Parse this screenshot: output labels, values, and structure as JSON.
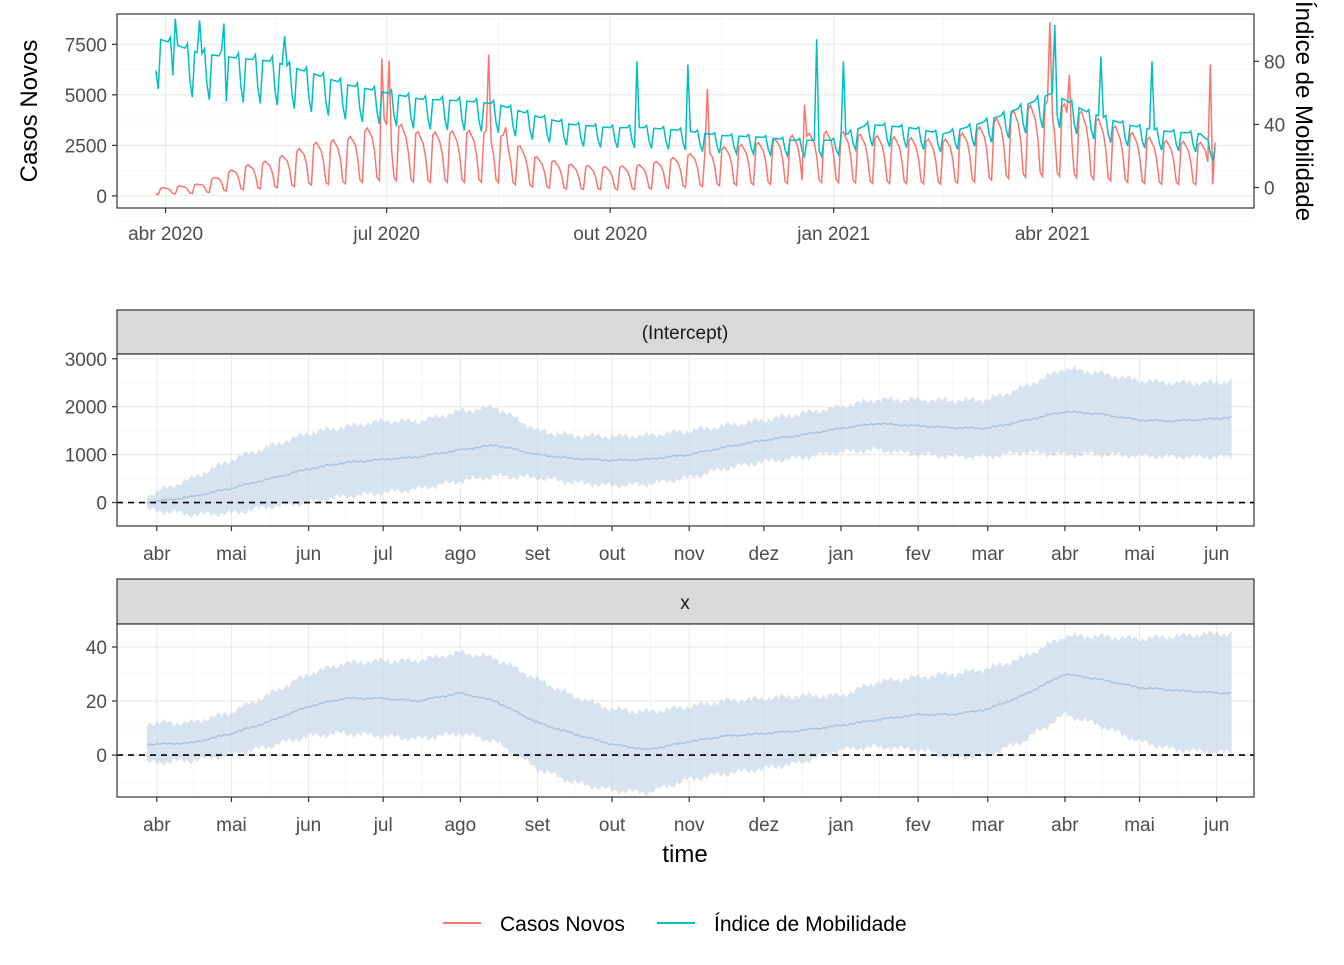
{
  "colors": {
    "casos": "#F8766D",
    "mobilidade": "#00BFC4",
    "ribbon": "#c6d9ea",
    "line": "#a9c4dc",
    "grid_major": "#ebebeb",
    "grid_minor": "#f4f4f4",
    "strip_fill": "#d9d9d9"
  },
  "legend": {
    "position": "bottom",
    "items": [
      "Casos Novos",
      "Índice de Mobilidade"
    ]
  },
  "chart_data": [
    {
      "type": "line",
      "x_axis": {
        "type": "date",
        "range": [
          "2020-03-12",
          "2021-06-23"
        ],
        "ticks": [
          "2020-04-01",
          "2020-07-01",
          "2020-10-01",
          "2021-01-01",
          "2021-04-01"
        ],
        "tick_labels": [
          "abr 2020",
          "jul 2020",
          "out 2020",
          "jan 2021",
          "abr 2021"
        ]
      },
      "y_left": {
        "label": "Casos Novos",
        "range": [
          -600,
          9000
        ],
        "ticks": [
          0,
          2500,
          5000,
          7500
        ]
      },
      "y_right": {
        "label": "Índice de Mobilidade",
        "range": [
          -13,
          110
        ],
        "ticks": [
          0,
          40,
          80
        ]
      },
      "grid": true,
      "series": [
        {
          "name": "Casos Novos",
          "axis": "left",
          "color": "#F8766D",
          "weekly_pattern": [
            1.15,
            1.2,
            1.1,
            1.0,
            0.75,
            0.3,
            0.25
          ],
          "points": [
            [
              "2020-03-28",
              300
            ],
            [
              "2020-04-15",
              500
            ],
            [
              "2020-05-01",
              1200
            ],
            [
              "2020-05-15",
              1500
            ],
            [
              "2020-06-01",
              2200
            ],
            [
              "2020-06-15",
              2400
            ],
            [
              "2020-07-01",
              3200
            ],
            [
              "2020-07-15",
              2600
            ],
            [
              "2020-08-01",
              2700
            ],
            [
              "2020-08-15",
              2700
            ],
            [
              "2020-09-01",
              1600
            ],
            [
              "2020-09-15",
              1300
            ],
            [
              "2020-10-01",
              1200
            ],
            [
              "2020-10-15",
              1300
            ],
            [
              "2020-11-01",
              1700
            ],
            [
              "2020-11-15",
              2000
            ],
            [
              "2020-12-01",
              2200
            ],
            [
              "2020-12-15",
              2500
            ],
            [
              "2021-01-01",
              2700
            ],
            [
              "2021-01-15",
              2500
            ],
            [
              "2021-02-01",
              2400
            ],
            [
              "2021-02-15",
              2300
            ],
            [
              "2021-03-01",
              2800
            ],
            [
              "2021-03-15",
              3500
            ],
            [
              "2021-04-01",
              4000
            ],
            [
              "2021-04-15",
              3400
            ],
            [
              "2021-05-01",
              2700
            ],
            [
              "2021-05-15",
              2300
            ],
            [
              "2021-06-01",
              2200
            ],
            [
              "2021-06-07",
              2300
            ]
          ],
          "spikes": [
            [
              "2020-06-29",
              6800
            ],
            [
              "2020-07-02",
              6700
            ],
            [
              "2020-08-12",
              7000
            ],
            [
              "2020-08-19",
              3400
            ],
            [
              "2020-11-10",
              5300
            ],
            [
              "2020-12-20",
              4500
            ],
            [
              "2021-03-31",
              8600
            ],
            [
              "2021-04-08",
              6000
            ],
            [
              "2021-06-05",
              6500
            ]
          ]
        },
        {
          "name": "Índice de Mobilidade",
          "axis": "right",
          "color": "#00BFC4",
          "weekly_pattern": [
            1.0,
            1.0,
            1.0,
            1.0,
            1.04,
            0.78,
            0.66
          ],
          "points": [
            [
              "2020-03-28",
              95
            ],
            [
              "2020-04-15",
              85
            ],
            [
              "2020-05-01",
              82
            ],
            [
              "2020-05-15",
              80
            ],
            [
              "2020-06-01",
              72
            ],
            [
              "2020-06-15",
              65
            ],
            [
              "2020-07-01",
              60
            ],
            [
              "2020-07-15",
              56
            ],
            [
              "2020-08-01",
              55
            ],
            [
              "2020-08-15",
              53
            ],
            [
              "2020-09-01",
              45
            ],
            [
              "2020-09-15",
              40
            ],
            [
              "2020-10-01",
              38
            ],
            [
              "2020-10-15",
              38
            ],
            [
              "2020-11-01",
              36
            ],
            [
              "2020-11-15",
              33
            ],
            [
              "2020-12-01",
              32
            ],
            [
              "2020-12-15",
              30
            ],
            [
              "2021-01-01",
              30
            ],
            [
              "2021-01-15",
              40
            ],
            [
              "2021-02-01",
              38
            ],
            [
              "2021-02-15",
              34
            ],
            [
              "2021-03-01",
              40
            ],
            [
              "2021-03-15",
              48
            ],
            [
              "2021-04-01",
              60
            ],
            [
              "2021-04-15",
              48
            ],
            [
              "2021-05-01",
              40
            ],
            [
              "2021-05-15",
              36
            ],
            [
              "2021-06-01",
              34
            ],
            [
              "2021-06-07",
              25
            ]
          ],
          "spikes": [
            [
              "2020-04-05",
              107
            ],
            [
              "2020-04-15",
              106
            ],
            [
              "2020-04-25",
              104
            ],
            [
              "2020-05-20",
              96
            ],
            [
              "2020-10-12",
              80
            ],
            [
              "2020-11-02",
              78
            ],
            [
              "2020-12-25",
              94
            ],
            [
              "2021-01-05",
              80
            ],
            [
              "2021-04-02",
              103
            ],
            [
              "2021-04-21",
              83
            ],
            [
              "2021-05-12",
              80
            ]
          ]
        }
      ]
    },
    {
      "type": "area",
      "facet": "(Intercept)",
      "x_axis": {
        "type": "date",
        "range": [
          "2020-03-16",
          "2021-06-16"
        ],
        "ticks": [
          "2020-04-01",
          "2020-05-01",
          "2020-06-01",
          "2020-07-01",
          "2020-08-01",
          "2020-09-01",
          "2020-10-01",
          "2020-11-01",
          "2020-12-01",
          "2021-01-01",
          "2021-02-01",
          "2021-03-01",
          "2021-04-01",
          "2021-05-01",
          "2021-06-01"
        ],
        "tick_labels": [
          "abr",
          "mai",
          "jun",
          "jul",
          "ago",
          "set",
          "out",
          "nov",
          "dez",
          "jan",
          "fev",
          "mar",
          "abr",
          "mai",
          "jun"
        ]
      },
      "y_axis": {
        "range": [
          -490,
          3100
        ],
        "ticks": [
          0,
          1000,
          2000,
          3000
        ]
      },
      "reference_line": 0,
      "grid": true,
      "series": [
        {
          "x": [
            "2020-03-28",
            "2020-04-15",
            "2020-05-01",
            "2020-05-15",
            "2020-06-01",
            "2020-06-15",
            "2020-07-01",
            "2020-07-15",
            "2020-08-01",
            "2020-08-15",
            "2020-09-01",
            "2020-09-15",
            "2020-10-01",
            "2020-10-15",
            "2020-11-01",
            "2020-11-15",
            "2020-12-01",
            "2020-12-15",
            "2021-01-01",
            "2021-01-15",
            "2021-02-01",
            "2021-02-15",
            "2021-03-01",
            "2021-03-15",
            "2021-04-01",
            "2021-04-15",
            "2021-05-01",
            "2021-05-15",
            "2021-06-01",
            "2021-06-07"
          ],
          "estimate": [
            0,
            120,
            300,
            480,
            700,
            830,
            900,
            950,
            1100,
            1200,
            1000,
            920,
            880,
            900,
            1000,
            1150,
            1300,
            1400,
            1550,
            1650,
            1600,
            1560,
            1550,
            1700,
            1900,
            1850,
            1720,
            1700,
            1750,
            1780
          ],
          "lower": [
            -150,
            -250,
            -230,
            -100,
            0,
            120,
            200,
            280,
            450,
            550,
            520,
            420,
            350,
            380,
            520,
            700,
            850,
            930,
            1050,
            1100,
            1000,
            960,
            950,
            1050,
            1000,
            1000,
            970,
            950,
            950,
            950
          ],
          "upper": [
            150,
            500,
            900,
            1150,
            1450,
            1580,
            1700,
            1700,
            1900,
            2000,
            1500,
            1400,
            1380,
            1400,
            1500,
            1600,
            1720,
            1850,
            2000,
            2150,
            2150,
            2130,
            2150,
            2400,
            2800,
            2700,
            2550,
            2500,
            2500,
            2550
          ]
        }
      ]
    },
    {
      "type": "area",
      "facet": "x",
      "x_axis": {
        "type": "date",
        "range": [
          "2020-03-16",
          "2021-06-16"
        ],
        "ticks": [
          "2020-04-01",
          "2020-05-01",
          "2020-06-01",
          "2020-07-01",
          "2020-08-01",
          "2020-09-01",
          "2020-10-01",
          "2020-11-01",
          "2020-12-01",
          "2021-01-01",
          "2021-02-01",
          "2021-03-01",
          "2021-04-01",
          "2021-05-01",
          "2021-06-01"
        ],
        "tick_labels": [
          "abr",
          "mai",
          "jun",
          "jul",
          "ago",
          "set",
          "out",
          "nov",
          "dez",
          "jan",
          "fev",
          "mar",
          "abr",
          "mai",
          "jun"
        ]
      },
      "y_axis": {
        "range": [
          -15.5,
          48.5
        ],
        "ticks": [
          0,
          20,
          40
        ]
      },
      "xlabel": "time",
      "reference_line": 0,
      "grid": true,
      "series": [
        {
          "x": [
            "2020-03-28",
            "2020-04-15",
            "2020-05-01",
            "2020-05-15",
            "2020-06-01",
            "2020-06-15",
            "2020-07-01",
            "2020-07-15",
            "2020-08-01",
            "2020-08-15",
            "2020-09-01",
            "2020-09-15",
            "2020-10-01",
            "2020-10-15",
            "2020-11-01",
            "2020-11-15",
            "2020-12-01",
            "2020-12-15",
            "2021-01-01",
            "2021-01-15",
            "2021-02-01",
            "2021-02-15",
            "2021-03-01",
            "2021-03-15",
            "2021-04-01",
            "2021-04-15",
            "2021-05-01",
            "2021-05-15",
            "2021-06-01",
            "2021-06-07"
          ],
          "estimate": [
            4,
            4.5,
            8,
            12,
            18,
            21,
            21,
            20,
            23,
            20,
            12,
            8,
            4,
            2,
            5,
            7,
            8,
            9,
            11,
            13,
            15,
            15,
            17,
            22,
            30,
            28,
            25,
            24,
            23,
            23
          ],
          "lower": [
            -3,
            -2,
            0,
            3,
            7,
            8,
            7,
            6,
            8,
            5,
            -5,
            -10,
            -13,
            -14,
            -9,
            -7,
            -5,
            -3,
            2,
            3,
            2,
            -1,
            0,
            5,
            15,
            11,
            5,
            2,
            1,
            1
          ],
          "upper": [
            12,
            12,
            16,
            22,
            30,
            34,
            35,
            35,
            38,
            36,
            28,
            22,
            17,
            16,
            18,
            20,
            21,
            22,
            22,
            27,
            29,
            30,
            32,
            36,
            44,
            44,
            43,
            44,
            45,
            45
          ]
        }
      ]
    }
  ]
}
